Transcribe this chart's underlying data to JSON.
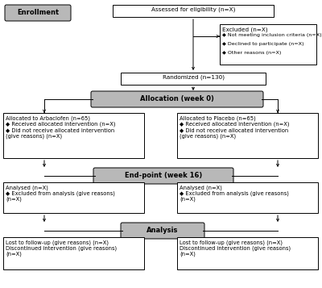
{
  "bg_color": "#ffffff",
  "box_edge_color": "#000000",
  "gray_fill": "#b8b8b8",
  "white_fill": "#ffffff",
  "font_size": 5.2,
  "label_font_size": 6.0,
  "enrollment_label": "Enrollment",
  "eligibility_text": "Assessed for eligibility (n=X)",
  "excluded_title": "Excluded (n=X)",
  "excluded_bullets": [
    "◆ Not meeting inclusion criteria (n=X)",
    "◆ Declined to participate (n=X)",
    "◆ Other reasons (n=X)"
  ],
  "randomized_text": "Randomized (n=130)",
  "allocation_label": "Allocation (week 0)",
  "arbaclofen_text": "Allocated to Arbaclofen (n=65)\n◆ Received allocated intervention (n=X)\n◆ Did not receive allocated intervention\n(give reasons) (n=X)",
  "placebo_text": "Allocated to Placebo (n=65)\n◆ Received allocated intervention (n=X)\n◆ Did not receive allocated intervention\n(give reasons) (n=X)",
  "endpoint_label": "End-point (week 16)",
  "analysed_left": "Analysed (n=X)\n◆ Excluded from analysis (give reasons)\n(n=X)",
  "analysed_right": "Analysed (n=X)\n◆ Excluded from analysis (give reasons)\n(n=X)",
  "analysis_label": "Analysis",
  "followup_left": "Lost to follow-up (give reasons) (n=X)\nDiscontinued intervention (give reasons)\n(n=X)",
  "followup_right": "Lost to follow-up (give reasons) (n=X)\nDiscontinued intervention (give reasons)\n(n=X)",
  "lw": 0.7
}
